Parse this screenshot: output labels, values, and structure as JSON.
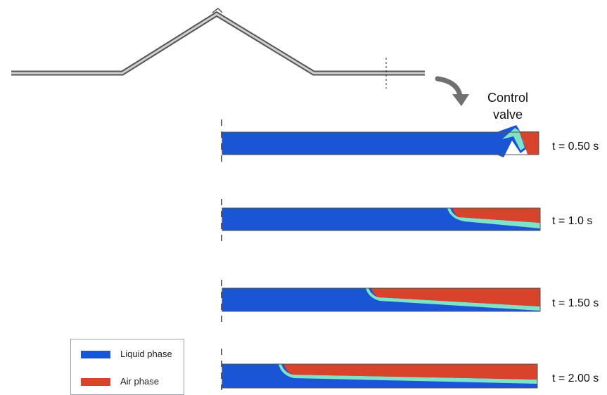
{
  "valve_label": "Control\nvalve",
  "time_labels": [
    "t = 0.50 s",
    "t = 1.0 s",
    "t = 1.50 s",
    "t = 2.00 s"
  ],
  "legend": {
    "items": [
      {
        "label": "Liquid phase",
        "color": "#1a55d6"
      },
      {
        "label": "Air phase",
        "color": "#d9432c"
      }
    ]
  },
  "colors": {
    "liquid": "#1a55d6",
    "air": "#d9432c",
    "interface": "#7fe3c8",
    "pipe_outline": "#555555",
    "arrow": "#707070"
  },
  "air_fraction": [
    0.1,
    0.28,
    0.53,
    0.8
  ]
}
